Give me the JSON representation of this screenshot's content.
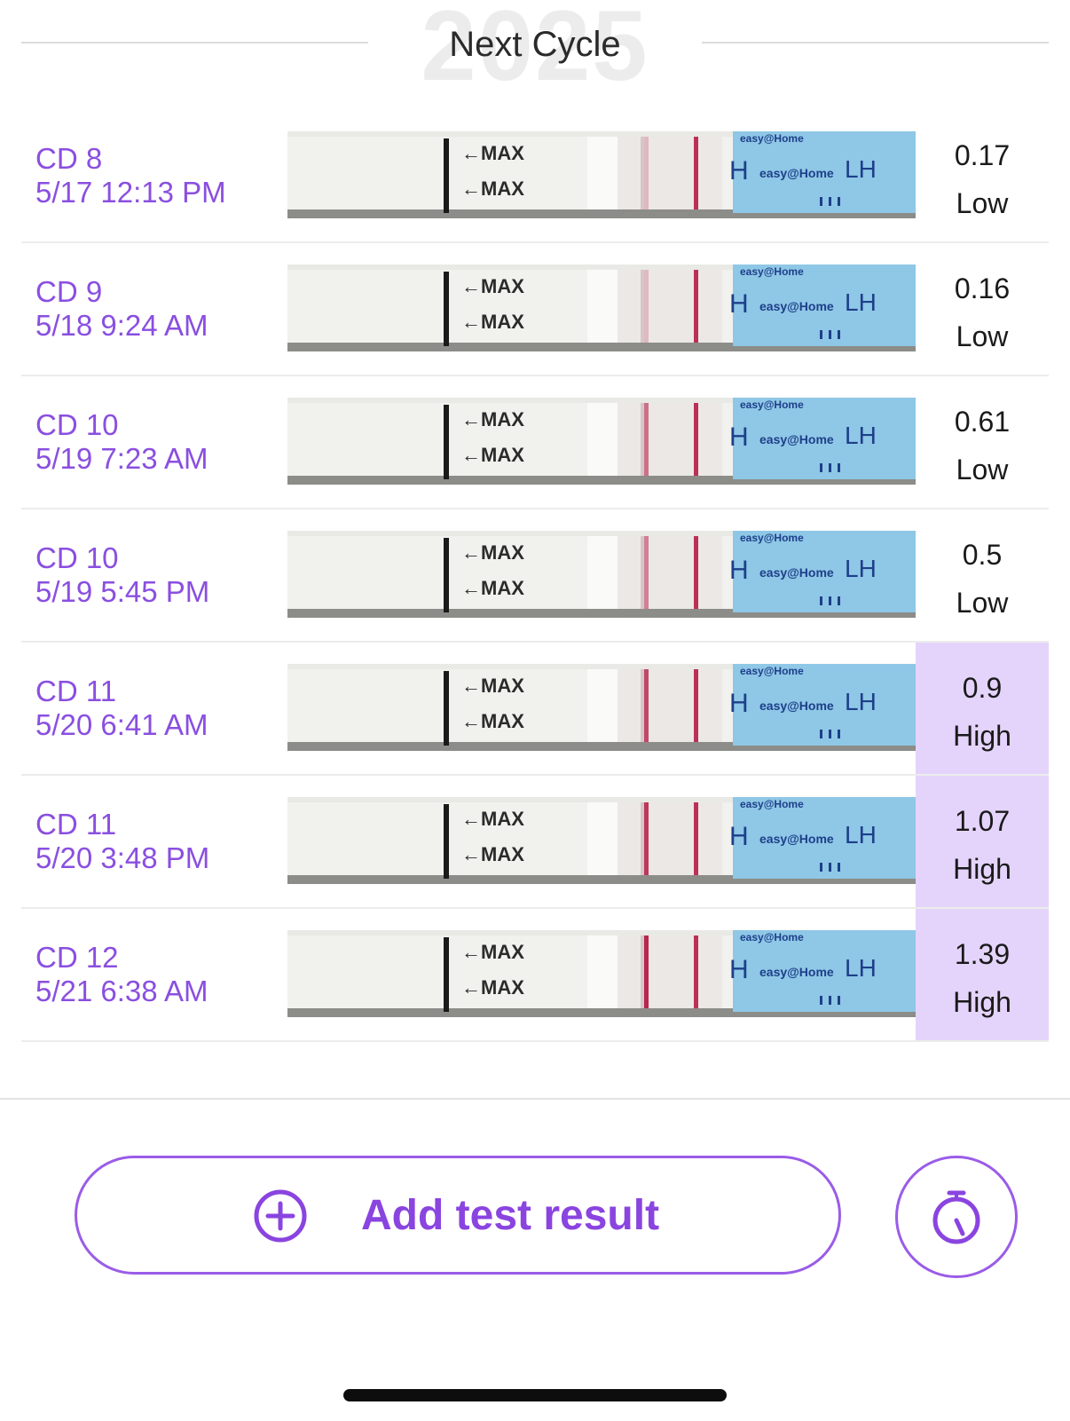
{
  "header": {
    "ghost_year": "2025",
    "title": "Next Cycle"
  },
  "brand": {
    "strip_text": "easy@Home",
    "strip_lh": "LH",
    "max_label": "←MAX"
  },
  "colors": {
    "accent": "#8a44e0",
    "high_bg": "#e4d4fb",
    "strip_blue": "#8fc7e6",
    "test_line": "#b8264e"
  },
  "results": [
    {
      "cycle_day": "CD 8",
      "datetime": "5/17 12:13 PM",
      "value": "0.17",
      "level": "Low",
      "high": false,
      "t_intensity": 0.12
    },
    {
      "cycle_day": "CD 9",
      "datetime": "5/18 9:24 AM",
      "value": "0.16",
      "level": "Low",
      "high": false,
      "t_intensity": 0.1
    },
    {
      "cycle_day": "CD 10",
      "datetime": "5/19 7:23 AM",
      "value": "0.61",
      "level": "Low",
      "high": false,
      "t_intensity": 0.55
    },
    {
      "cycle_day": "CD 10",
      "datetime": "5/19 5:45 PM",
      "value": "0.5",
      "level": "Low",
      "high": false,
      "t_intensity": 0.45
    },
    {
      "cycle_day": "CD 11",
      "datetime": "5/20 6:41 AM",
      "value": "0.9",
      "level": "High",
      "high": true,
      "t_intensity": 0.8
    },
    {
      "cycle_day": "CD 11",
      "datetime": "5/20 3:48 PM",
      "value": "1.07",
      "level": "High",
      "high": true,
      "t_intensity": 0.9
    },
    {
      "cycle_day": "CD 12",
      "datetime": "5/21 6:38 AM",
      "value": "1.39",
      "level": "High",
      "high": true,
      "t_intensity": 1.0
    }
  ],
  "actions": {
    "add_label": "Add test result",
    "plus_icon": "plus-circle-icon",
    "timer_icon": "stopwatch-icon"
  }
}
